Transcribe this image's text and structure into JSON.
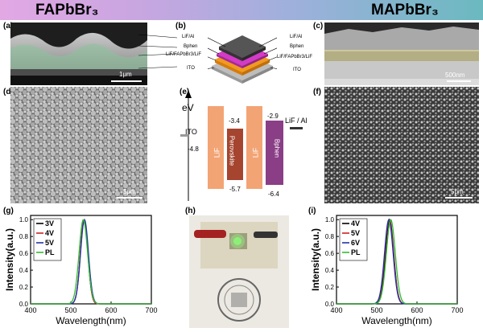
{
  "banner": {
    "left_title": "FAPbBr₃",
    "right_title": "MAPbBr₃"
  },
  "panels": {
    "a": {
      "letter": "(a)",
      "scale": "1μm",
      "labels": [
        "LiF/Al",
        "Bphen",
        "LiF/FAPbBr3/LiF",
        "ITO"
      ]
    },
    "b": {
      "letter": "(b)",
      "labels_left": [
        "LiF/Al",
        "Bphen",
        "LiF/FAPbBr3/LiF",
        "ITO"
      ],
      "labels_right": [
        "LiF/Al",
        "Bphen",
        "LiF/FAPbBr3/LiF",
        "ITO"
      ]
    },
    "c": {
      "letter": "(c)",
      "scale": "500nm"
    },
    "d": {
      "letter": "(d)",
      "scale": "5μm"
    },
    "e": {
      "letter": "(e)",
      "axis": "eV",
      "ito": {
        "label": "ITO",
        "value": "-4.8"
      },
      "lif_left": {
        "label": "LiF"
      },
      "perovskite": {
        "label": "Perovskite",
        "top": "-3.4",
        "bottom": "-5.7"
      },
      "lif_right": {
        "label": "LiF"
      },
      "bphen": {
        "label": "Bphen",
        "top": "-2.9",
        "bottom": "-6.4"
      },
      "cathode": {
        "label": "LiF / Al"
      }
    },
    "f": {
      "letter": "(f)",
      "scale": "5μm"
    },
    "g": {
      "letter": "(g)"
    },
    "h": {
      "letter": "(h)"
    },
    "i": {
      "letter": "(i)"
    }
  },
  "chart_data": [
    {
      "type": "line",
      "panel": "g",
      "xlabel": "Wavelength(nm)",
      "ylabel": "Intensity(a.u.)",
      "xlim": [
        400,
        700
      ],
      "ylim": [
        0,
        1.05
      ],
      "xticks": [
        400,
        500,
        600,
        700
      ],
      "yticks": [
        0.0,
        0.2,
        0.4,
        0.6,
        0.8,
        1.0
      ],
      "legend": "top-left",
      "series": [
        {
          "name": "3V",
          "color": "#000000",
          "peak": 533,
          "fwhm": 22
        },
        {
          "name": "4V",
          "color": "#cc2222",
          "peak": 533,
          "fwhm": 22
        },
        {
          "name": "5V",
          "color": "#2233aa",
          "peak": 534,
          "fwhm": 23
        },
        {
          "name": "PL",
          "color": "#33bb33",
          "peak": 531,
          "fwhm": 25
        }
      ]
    },
    {
      "type": "line",
      "panel": "i",
      "xlabel": "Wavelength(nm)",
      "ylabel": "Intensity(a.u.)",
      "xlim": [
        400,
        700
      ],
      "ylim": [
        0,
        1.05
      ],
      "xticks": [
        400,
        500,
        600,
        700
      ],
      "yticks": [
        0.0,
        0.2,
        0.4,
        0.6,
        0.8,
        1.0
      ],
      "legend": "top-left",
      "series": [
        {
          "name": "4V",
          "color": "#000000",
          "peak": 532,
          "fwhm": 24
        },
        {
          "name": "5V",
          "color": "#cc2222",
          "peak": 531,
          "fwhm": 25
        },
        {
          "name": "6V",
          "color": "#2233aa",
          "peak": 530,
          "fwhm": 25
        },
        {
          "name": "PL",
          "color": "#33bb33",
          "peak": 535,
          "fwhm": 26
        }
      ]
    }
  ]
}
